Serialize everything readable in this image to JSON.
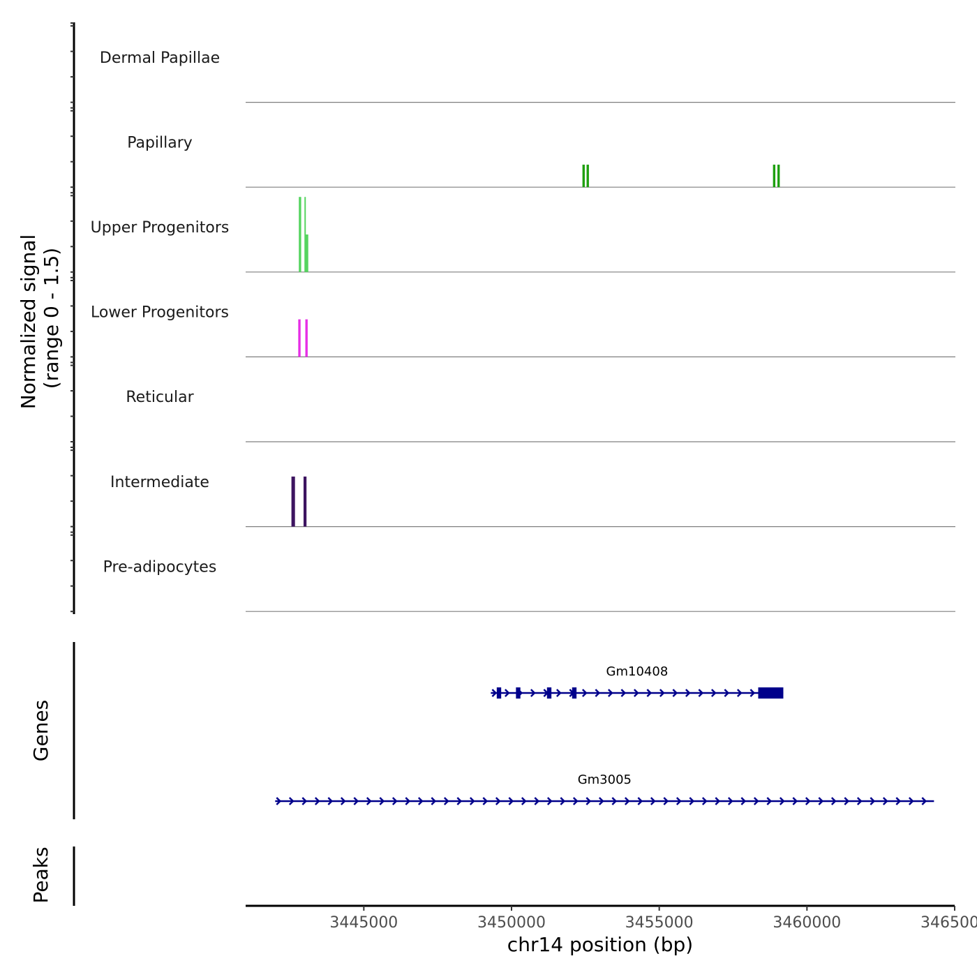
{
  "chart_data": {
    "type": "genome-coverage",
    "title": "",
    "ylabel_line1": "Normalized signal",
    "ylabel_line2": "(range 0 - 1.5)",
    "xlabel": "chr14 position (bp)",
    "xlim": [
      3441000,
      3465000
    ],
    "ylim": [
      0,
      1.5
    ],
    "x_ticks": [
      3445000,
      3450000,
      3455000,
      3460000,
      3465000
    ],
    "x_tick_labels": [
      "3445000",
      "3450000",
      "3455000",
      "3460000",
      "3465000"
    ],
    "tracks": [
      {
        "name": "Dermal Papillae",
        "color": "#1d4e1d",
        "peaks": []
      },
      {
        "name": "Papillary",
        "color": "#1fa010",
        "peaks": [
          {
            "start": 3452400,
            "end": 3452480,
            "value": 0.45
          },
          {
            "start": 3452540,
            "end": 3452620,
            "value": 0.45
          },
          {
            "start": 3458850,
            "end": 3458930,
            "value": 0.45
          },
          {
            "start": 3459000,
            "end": 3459080,
            "value": 0.45
          }
        ]
      },
      {
        "name": "Upper Progenitors",
        "color": "#55d45f",
        "peaks": [
          {
            "start": 3442800,
            "end": 3442880,
            "value": 1.5
          },
          {
            "start": 3442990,
            "end": 3443030,
            "value": 1.5
          },
          {
            "start": 3443030,
            "end": 3443120,
            "value": 0.75
          }
        ]
      },
      {
        "name": "Lower Progenitors",
        "color": "#e62ee6",
        "peaks": [
          {
            "start": 3442780,
            "end": 3442860,
            "value": 0.75
          },
          {
            "start": 3443020,
            "end": 3443100,
            "value": 0.75
          }
        ]
      },
      {
        "name": "Reticular",
        "color": "#333333",
        "peaks": []
      },
      {
        "name": "Intermediate",
        "color": "#3d1460",
        "peaks": [
          {
            "start": 3442550,
            "end": 3442670,
            "value": 1.0
          },
          {
            "start": 3442960,
            "end": 3443060,
            "value": 1.0
          }
        ]
      },
      {
        "name": "Pre-adipocytes",
        "color": "#333333",
        "peaks": []
      }
    ],
    "genes_label": "Genes",
    "peaks_label": "Peaks",
    "genes": [
      {
        "name": "Gm10408",
        "strand": "+",
        "start": 3449300,
        "end": 3459200,
        "exons": [
          [
            3449500,
            3449650
          ],
          [
            3450150,
            3450300
          ],
          [
            3451200,
            3451350
          ],
          [
            3452050,
            3452200
          ],
          [
            3458350,
            3459200
          ]
        ],
        "color": "#00008b"
      },
      {
        "name": "Gm3005",
        "strand": "+",
        "start": 3442000,
        "end": 3464300,
        "exons": [],
        "color": "#00008b"
      }
    ]
  }
}
